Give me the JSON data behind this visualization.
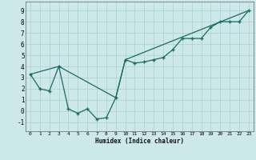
{
  "title": "",
  "xlabel": "Humidex (Indice chaleur)",
  "xlim": [
    -0.5,
    23.5
  ],
  "ylim": [
    -1.8,
    9.8
  ],
  "xticks": [
    0,
    1,
    2,
    3,
    4,
    5,
    6,
    7,
    8,
    9,
    10,
    11,
    12,
    13,
    14,
    15,
    16,
    17,
    18,
    19,
    20,
    21,
    22,
    23
  ],
  "yticks": [
    -1,
    0,
    1,
    2,
    3,
    4,
    5,
    6,
    7,
    8,
    9
  ],
  "bg_color": "#cce8e8",
  "line_color": "#1a6b60",
  "grid_color": "#aacfcf",
  "line1_x": [
    0,
    1,
    2,
    3,
    4,
    5,
    6,
    7,
    8,
    9,
    10,
    11,
    12,
    13,
    14,
    15,
    16,
    17,
    18,
    19,
    20,
    21,
    22,
    23
  ],
  "line1_y": [
    3.3,
    2.0,
    1.8,
    4.0,
    0.2,
    -0.2,
    0.2,
    -0.7,
    -0.6,
    1.2,
    4.6,
    4.3,
    4.4,
    4.6,
    4.8,
    5.5,
    6.5,
    6.5,
    6.5,
    7.5,
    8.0,
    8.0,
    8.0,
    9.0
  ],
  "line2_x": [
    0,
    3,
    9,
    10,
    23
  ],
  "line2_y": [
    3.3,
    4.0,
    1.2,
    4.6,
    9.0
  ]
}
